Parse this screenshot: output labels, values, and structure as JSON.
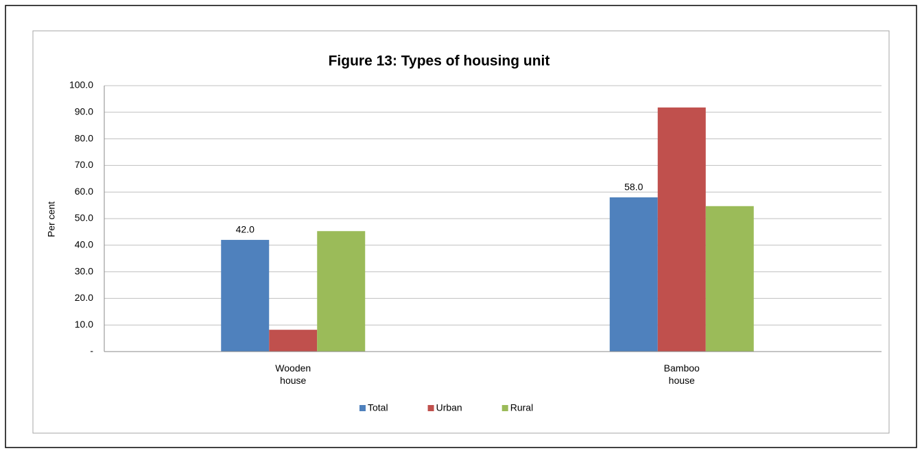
{
  "chart_data": {
    "type": "bar",
    "title": "Figure 13:  Types of housing unit",
    "ylabel": "Per cent",
    "categories": [
      "Wooden house",
      "Bamboo house"
    ],
    "series": [
      {
        "name": "Total",
        "color": "#4f81bd",
        "values": [
          42.0,
          58.0
        ],
        "value_labels": [
          "42.0",
          "58.0"
        ]
      },
      {
        "name": "Urban",
        "color": "#c0504d",
        "values": [
          8.2,
          91.8
        ]
      },
      {
        "name": "Rural",
        "color": "#9bbb59",
        "values": [
          45.3,
          54.7
        ]
      }
    ],
    "ylim": [
      0,
      100
    ],
    "yticks": [
      {
        "value": 0,
        "label": "-"
      },
      {
        "value": 10,
        "label": "10.0"
      },
      {
        "value": 20,
        "label": "20.0"
      },
      {
        "value": 30,
        "label": "30.0"
      },
      {
        "value": 40,
        "label": "40.0"
      },
      {
        "value": 50,
        "label": "50.0"
      },
      {
        "value": 60,
        "label": "60.0"
      },
      {
        "value": 70,
        "label": "70.0"
      },
      {
        "value": 80,
        "label": "80.0"
      },
      {
        "value": 90,
        "label": "90.0"
      },
      {
        "value": 100,
        "label": "100.0"
      }
    ],
    "grid": true,
    "legend": "bottom"
  }
}
